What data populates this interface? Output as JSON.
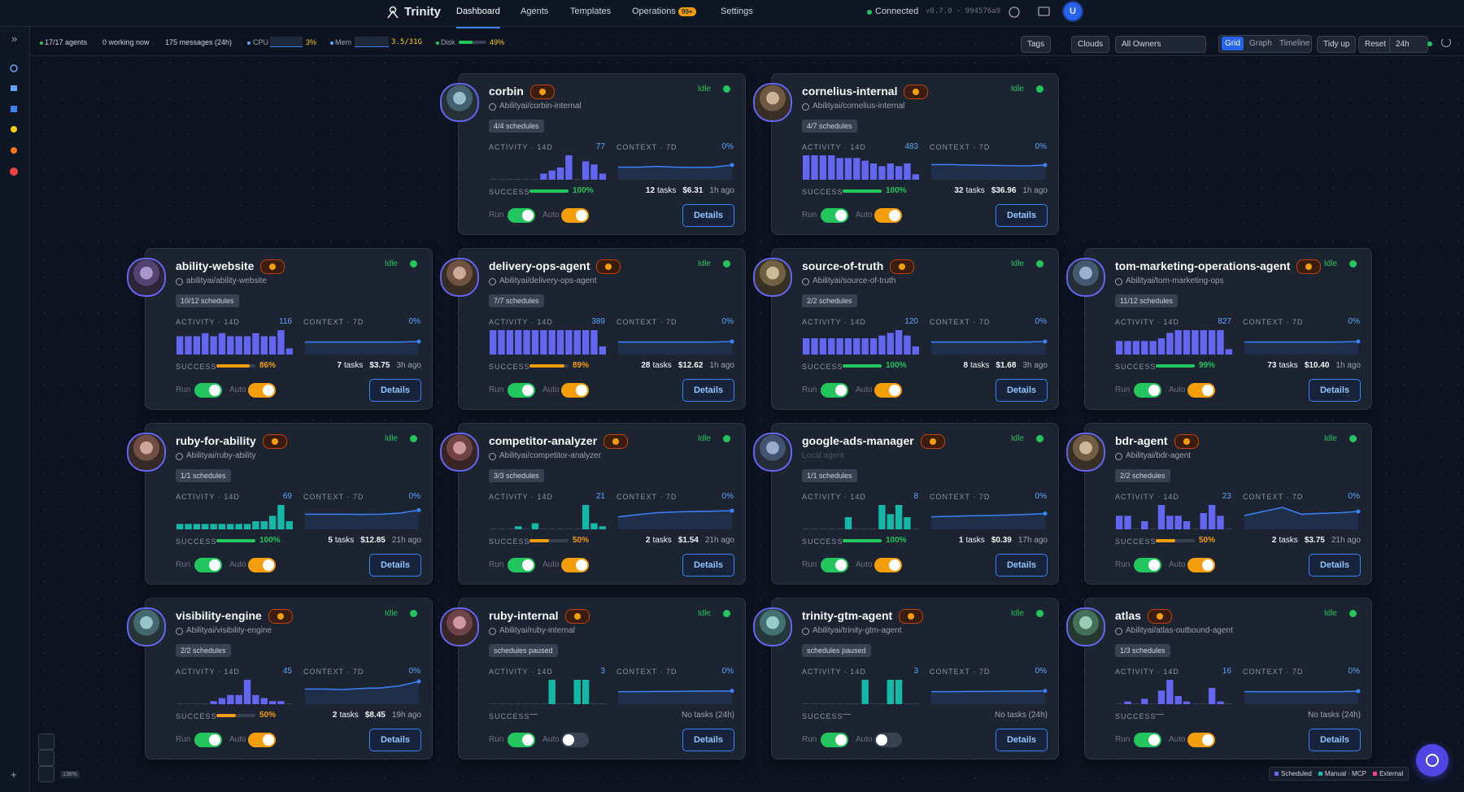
{
  "header": {
    "brand": "Trinity",
    "nav": [
      "Dashboard",
      "Agents",
      "Templates",
      "Operations",
      "Settings"
    ],
    "ops_badge": "99+",
    "status": "Connected",
    "version": "v0.7.0 · 994576a9",
    "user": "U"
  },
  "stats": {
    "agents": "17/17 agents",
    "working": "0 working now",
    "messages": "175 messages (24h)",
    "cpu_label": "CPU",
    "cpu": "3%",
    "mem_label": "Mem",
    "mem": "3.5/31G",
    "disk_label": "Disk",
    "disk": 49,
    "disk_text": "49%"
  },
  "toolbar": {
    "tags": "Tags",
    "clouds": "Clouds",
    "owners": "All Owners",
    "views": [
      "Grid",
      "Graph",
      "Timeline"
    ],
    "tidy": "Tidy up",
    "reset": "Reset",
    "range": "24h"
  },
  "labels": {
    "idle": "Idle",
    "activity": "ACTIVITY · 14D",
    "context": "CONTEXT · 7D",
    "success": "SUCCESS",
    "tasks": "tasks",
    "no_tasks": "No tasks (24h)",
    "run": "Run",
    "auto": "Auto",
    "details": "Details"
  },
  "agents": [
    {
      "name": "corbin",
      "repo": "Abilityai/corbin-internal",
      "schedules": "4/4 schedules",
      "activity_total": 77,
      "context": "0%",
      "success": 100,
      "success_label": "100%",
      "tasks": "12",
      "cost": "$6.31",
      "ago": "1h ago",
      "auto": true,
      "color": "#6366f1",
      "activity": [
        0,
        0,
        0,
        0,
        0,
        0,
        2,
        3,
        4,
        8,
        0,
        6,
        5,
        2
      ],
      "context_line": [
        4,
        4,
        4.3,
        4,
        3.9,
        4,
        4.8
      ]
    },
    {
      "name": "cornelius-internal",
      "repo": "Abilityai/cornelius-internal",
      "schedules": "4/7 schedules",
      "activity_total": 483,
      "context": "0%",
      "success": 100,
      "success_label": "100%",
      "tasks": "32",
      "cost": "$36.96",
      "ago": "1h ago",
      "auto": true,
      "color": "#6366f1",
      "activity": [
        9,
        9,
        9,
        9,
        8,
        8,
        8,
        7,
        6,
        5,
        6,
        5,
        6,
        2
      ],
      "context_line": [
        5,
        5,
        4.8,
        4.7,
        4.6,
        4.5,
        4.8
      ]
    },
    {
      "name": "ability-website",
      "repo": "abilityai/ability-website",
      "schedules": "10/12 schedules",
      "activity_total": 116,
      "context": "0%",
      "success": 86,
      "success_label": "86%",
      "tasks": "7",
      "cost": "$3.75",
      "ago": "3h ago",
      "auto": true,
      "color": "#6366f1",
      "activity": [
        6,
        6,
        6,
        7,
        6,
        7,
        6,
        6,
        6,
        7,
        6,
        6,
        8,
        2
      ],
      "context_line": [
        4,
        4,
        4,
        4,
        4,
        4,
        4.2
      ]
    },
    {
      "name": "delivery-ops-agent",
      "repo": "Abilityai/delivery-ops-agent",
      "schedules": "7/7 schedules",
      "activity_total": 389,
      "context": "0%",
      "success": 89,
      "success_label": "89%",
      "tasks": "28",
      "cost": "$12.62",
      "ago": "1h ago",
      "auto": true,
      "color": "#6366f1",
      "activity": [
        9,
        9,
        9,
        9,
        9,
        9,
        9,
        9,
        9,
        9,
        9,
        9,
        9,
        3
      ],
      "context_line": [
        4,
        4,
        4,
        4,
        4,
        4,
        4.2
      ]
    },
    {
      "name": "source-of-truth",
      "repo": "Abilityai/source-of-truth",
      "schedules": "2/2 schedules",
      "activity_total": 120,
      "context": "0%",
      "success": 100,
      "success_label": "100%",
      "tasks": "8",
      "cost": "$1.68",
      "ago": "3h ago",
      "auto": true,
      "color": "#6366f1",
      "activity": [
        6,
        6,
        6,
        6,
        6,
        6,
        6,
        6,
        6,
        7,
        8,
        9,
        7,
        3
      ],
      "context_line": [
        4,
        4,
        4,
        4,
        4,
        4,
        4.2
      ]
    },
    {
      "name": "tom-marketing-operations-agent",
      "repo": "Abilityai/tom-marketing-ops",
      "schedules": "11/12 schedules",
      "activity_total": 827,
      "context": "0%",
      "success": 99,
      "success_label": "99%",
      "tasks": "73",
      "cost": "$10.40",
      "ago": "1h ago",
      "auto": true,
      "color": "#6366f1",
      "activity": [
        5,
        5,
        5,
        5,
        5,
        6,
        8,
        9,
        9,
        9,
        9,
        9,
        9,
        2
      ],
      "context_line": [
        4,
        4,
        4,
        4,
        4,
        4,
        4.2
      ]
    },
    {
      "name": "ruby-for-ability",
      "repo": "Abilityai/ruby-ability",
      "schedules": "1/1 schedules",
      "activity_total": 69,
      "context": "0%",
      "success": 100,
      "success_label": "100%",
      "tasks": "5",
      "cost": "$12.85",
      "ago": "21h ago",
      "auto": true,
      "color": "#14b8a6",
      "activity": [
        2,
        2,
        2,
        2,
        2,
        2,
        2,
        2,
        2,
        3,
        3,
        5,
        9,
        3
      ],
      "context_line": [
        5,
        5,
        5,
        4.9,
        5,
        5.4,
        6.5
      ]
    },
    {
      "name": "competitor-analyzer",
      "repo": "Abilityai/competitor-analyzer",
      "schedules": "3/3 schedules",
      "activity_total": 21,
      "context": "0%",
      "success": 50,
      "success_label": "50%",
      "tasks": "2",
      "cost": "$1.54",
      "ago": "21h ago",
      "auto": true,
      "color": "#14b8a6",
      "activity": [
        0,
        0,
        0,
        1,
        0,
        2,
        0,
        0,
        0,
        0,
        0,
        8,
        2,
        1
      ],
      "context_line": [
        4,
        4.8,
        5.5,
        5.8,
        6,
        6.1,
        6.3
      ]
    },
    {
      "name": "google-ads-manager",
      "repo": "Local agent",
      "local": true,
      "schedules": "1/1 schedules",
      "activity_total": 8,
      "context": "0%",
      "success": 100,
      "success_label": "100%",
      "tasks": "1",
      "cost": "$0.39",
      "ago": "17h ago",
      "auto": true,
      "color": "#14b8a6",
      "activity": [
        0,
        0,
        0,
        0,
        0,
        4,
        0,
        0,
        0,
        8,
        5,
        8,
        4,
        0
      ],
      "context_line": [
        4,
        4.2,
        4.4,
        4.5,
        4.7,
        4.9,
        5.2
      ]
    },
    {
      "name": "bdr-agent",
      "repo": "Abilityai/bdr-agent",
      "schedules": "2/2 schedules",
      "activity_total": 23,
      "context": "0%",
      "success": 50,
      "success_label": "50%",
      "tasks": "2",
      "cost": "$3.75",
      "ago": "21h ago",
      "auto": true,
      "color": "#6366f1",
      "activity": [
        5,
        5,
        0,
        3,
        0,
        9,
        5,
        5,
        3,
        0,
        6,
        9,
        5,
        0
      ],
      "context_line": [
        4.5,
        6,
        7.5,
        5,
        5.3,
        5.5,
        6
      ]
    },
    {
      "name": "visibility-engine",
      "repo": "Abilityai/visibility-engine",
      "schedules": "2/2 schedules",
      "activity_total": 45,
      "context": "0%",
      "success": 50,
      "success_label": "50%",
      "tasks": "2",
      "cost": "$8.45",
      "ago": "19h ago",
      "auto": true,
      "color": "#6366f1",
      "activity": [
        0,
        0,
        0,
        0,
        1,
        2,
        3,
        3,
        8,
        3,
        2,
        1,
        1,
        0
      ],
      "context_line": [
        5,
        5,
        4.8,
        5.2,
        5.4,
        6.2,
        7.8
      ]
    },
    {
      "name": "ruby-internal",
      "repo": "Abilityai/ruby-internal",
      "schedules": "schedules paused",
      "activity_total": 3,
      "context": "0%",
      "success": null,
      "success_label": "—",
      "tasks": null,
      "cost": null,
      "ago": null,
      "auto": false,
      "color": "#14b8a6",
      "activity": [
        0,
        0,
        0,
        0,
        0,
        0,
        0,
        8,
        0,
        0,
        8,
        8,
        0,
        0
      ],
      "context_line": [
        4,
        4,
        4.1,
        4.1,
        4.2,
        4.2,
        4.3
      ]
    },
    {
      "name": "trinity-gtm-agent",
      "repo": "Abilityai/trinity-gtm-agent",
      "schedules": "schedules paused",
      "activity_total": 3,
      "context": "0%",
      "success": null,
      "success_label": "—",
      "tasks": null,
      "cost": null,
      "ago": null,
      "auto": false,
      "color": "#14b8a6",
      "activity": [
        0,
        0,
        0,
        0,
        0,
        0,
        0,
        8,
        0,
        0,
        8,
        8,
        0,
        0
      ],
      "context_line": [
        4,
        4,
        4.1,
        4.1,
        4.2,
        4.2,
        4.3
      ]
    },
    {
      "name": "atlas",
      "repo": "Abilityai/atlas-outbound-agent",
      "schedules": "1/3 schedules",
      "activity_total": 16,
      "context": "0%",
      "success": null,
      "success_label": "—",
      "tasks": null,
      "cost": null,
      "ago": null,
      "auto": true,
      "color": "#6366f1",
      "activity": [
        0,
        1,
        0,
        2,
        0,
        5,
        9,
        3,
        1,
        0,
        0,
        6,
        1,
        0
      ],
      "context_line": [
        4,
        4,
        4,
        4,
        4,
        4,
        4.2
      ]
    }
  ],
  "legend": [
    "Scheduled",
    "Manual · MCP",
    "External"
  ],
  "zoom": "138%"
}
